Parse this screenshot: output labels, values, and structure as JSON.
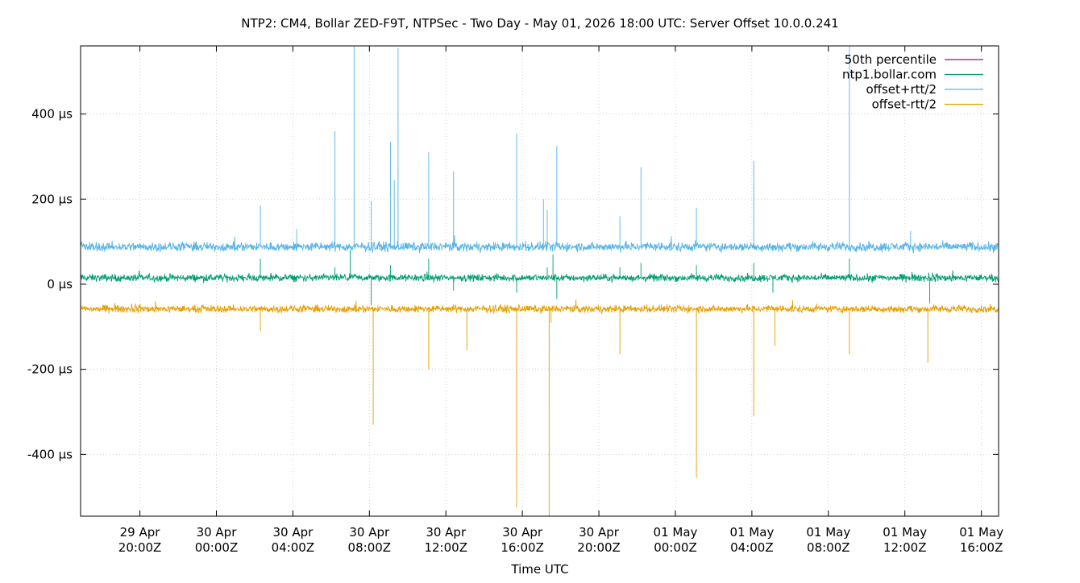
{
  "chart_data": {
    "type": "line",
    "title": "NTP2: CM4, Bollar ZED-F9T, NTPSec - Two Day - May 01, 2026 18:00 UTC: Server Offset 10.0.0.241",
    "xlabel": "Time UTC",
    "ylabel": "",
    "x_range_hours": [
      -3.1,
      44.9
    ],
    "ylim": [
      -545,
      560
    ],
    "y_ticks": [
      {
        "value": 400,
        "label": "400 µs"
      },
      {
        "value": 200,
        "label": "200 µs"
      },
      {
        "value": 0,
        "label": "0 µs"
      },
      {
        "value": -200,
        "label": "-200 µs"
      },
      {
        "value": -400,
        "label": "-400 µs"
      }
    ],
    "x_ticks": [
      {
        "hour": 0,
        "line1": "29 Apr",
        "line2": "20:00Z"
      },
      {
        "hour": 4,
        "line1": "30 Apr",
        "line2": "00:00Z"
      },
      {
        "hour": 8,
        "line1": "30 Apr",
        "line2": "04:00Z"
      },
      {
        "hour": 12,
        "line1": "30 Apr",
        "line2": "08:00Z"
      },
      {
        "hour": 16,
        "line1": "30 Apr",
        "line2": "12:00Z"
      },
      {
        "hour": 20,
        "line1": "30 Apr",
        "line2": "16:00Z"
      },
      {
        "hour": 24,
        "line1": "30 Apr",
        "line2": "20:00Z"
      },
      {
        "hour": 28,
        "line1": "01 May",
        "line2": "00:00Z"
      },
      {
        "hour": 32,
        "line1": "01 May",
        "line2": "04:00Z"
      },
      {
        "hour": 36,
        "line1": "01 May",
        "line2": "08:00Z"
      },
      {
        "hour": 40,
        "line1": "01 May",
        "line2": "12:00Z"
      },
      {
        "hour": 44,
        "line1": "01 May",
        "line2": "16:00Z"
      }
    ],
    "grid": true,
    "legend_position": "top-right",
    "series": [
      {
        "name": "50th percentile",
        "color": "#94117f",
        "values": []
      },
      {
        "name": "ntp1.bollar.com",
        "color": "#009e73",
        "baseline": 15,
        "noise": 8,
        "spikes": [
          [
            6.3,
            60
          ],
          [
            10.2,
            40
          ],
          [
            11.0,
            80
          ],
          [
            12.1,
            -50
          ],
          [
            13.1,
            45
          ],
          [
            15.1,
            60
          ],
          [
            16.4,
            -15
          ],
          [
            19.7,
            -20
          ],
          [
            21.3,
            40
          ],
          [
            21.6,
            70
          ],
          [
            21.8,
            -35
          ],
          [
            25.1,
            40
          ],
          [
            26.2,
            50
          ],
          [
            29.1,
            45
          ],
          [
            32.1,
            50
          ],
          [
            33.1,
            -20
          ],
          [
            37.1,
            60
          ],
          [
            41.3,
            -45
          ],
          [
            44.9,
            -30
          ]
        ]
      },
      {
        "name": "offset+rtt/2",
        "color": "#56b4e9",
        "baseline": 88,
        "noise": 10,
        "spikes": [
          [
            6.3,
            185
          ],
          [
            8.2,
            130
          ],
          [
            10.2,
            360
          ],
          [
            11.2,
            560
          ],
          [
            11.2,
            280
          ],
          [
            12.1,
            195
          ],
          [
            13.1,
            335
          ],
          [
            13.3,
            245
          ],
          [
            13.5,
            555
          ],
          [
            15.1,
            310
          ],
          [
            16.4,
            265
          ],
          [
            19.7,
            355
          ],
          [
            21.1,
            200
          ],
          [
            21.3,
            175
          ],
          [
            21.8,
            325
          ],
          [
            25.1,
            160
          ],
          [
            26.2,
            275
          ],
          [
            29.1,
            180
          ],
          [
            32.1,
            290
          ],
          [
            37.1,
            560
          ],
          [
            40.3,
            125
          ]
        ]
      },
      {
        "name": "offset-rtt/2",
        "color": "#e69f00",
        "baseline": -58,
        "noise": 8,
        "spikes": [
          [
            6.3,
            -110
          ],
          [
            12.2,
            -330
          ],
          [
            15.1,
            -200
          ],
          [
            17.1,
            -155
          ],
          [
            19.7,
            -525
          ],
          [
            21.4,
            -545
          ],
          [
            21.5,
            -90
          ],
          [
            25.1,
            -165
          ],
          [
            29.1,
            -455
          ],
          [
            32.1,
            -310
          ],
          [
            33.2,
            -145
          ],
          [
            37.1,
            -165
          ],
          [
            41.2,
            -185
          ],
          [
            44.9,
            -290
          ]
        ]
      }
    ]
  }
}
